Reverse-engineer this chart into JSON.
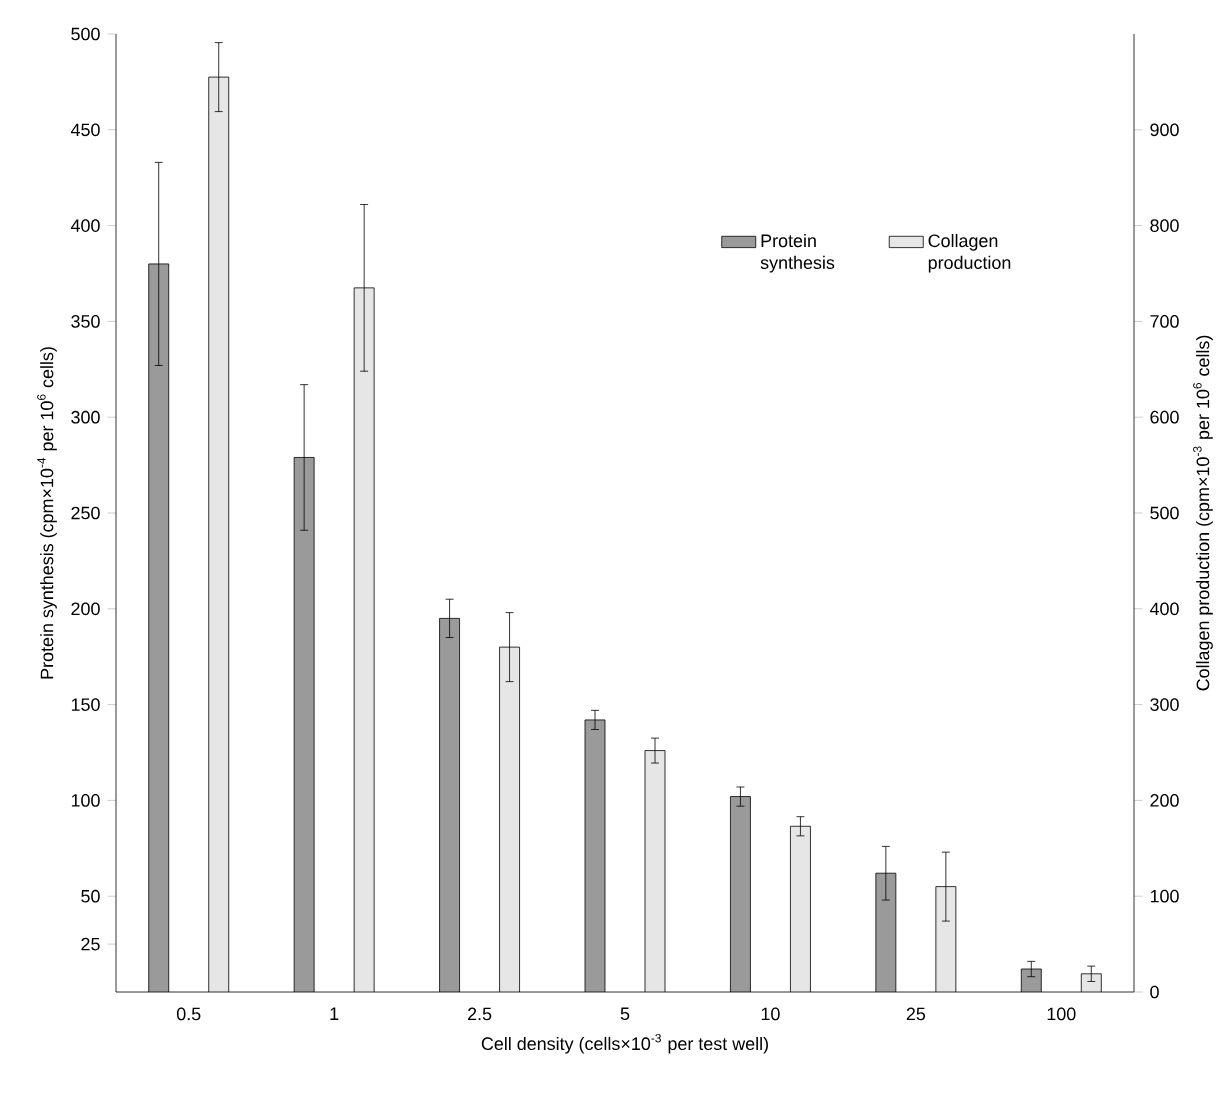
{
  "chart_data": {
    "type": "bar",
    "xlabel": "Cell density (cells×10$^{-3}$ per test well)",
    "ylabel": "Protein synthesis (cpm×10$^{-4}$ per 10$^{6}$ cells)",
    "y2label": "Collagen production (cpm×10$^{-3}$ per 10$^{6}$ cells)",
    "categories": [
      "0.5",
      "1",
      "2.5",
      "5",
      "10",
      "25",
      "100"
    ],
    "series": [
      {
        "name": "Protein synthesis",
        "color": "#9a9a9a",
        "values": [
          380,
          279,
          195,
          142,
          102,
          62,
          12
        ],
        "errors": [
          53,
          38,
          10,
          5,
          5,
          14,
          4
        ]
      },
      {
        "name": "Collagen production",
        "color": "#e6e6e6",
        "axis": "y2",
        "values": [
          955,
          735,
          360,
          252,
          173,
          110,
          19
        ],
        "errors": [
          36,
          87,
          36,
          13,
          10,
          36,
          8
        ]
      }
    ],
    "ylim": [
      0,
      500
    ],
    "yticks": [
      25,
      50,
      100,
      150,
      200,
      250,
      300,
      350,
      400,
      450,
      500
    ],
    "y2lim": [
      0,
      1000
    ],
    "y2ticks": [
      0,
      100,
      200,
      300,
      400,
      500,
      600,
      700,
      800,
      900
    ],
    "legend": "top right"
  }
}
